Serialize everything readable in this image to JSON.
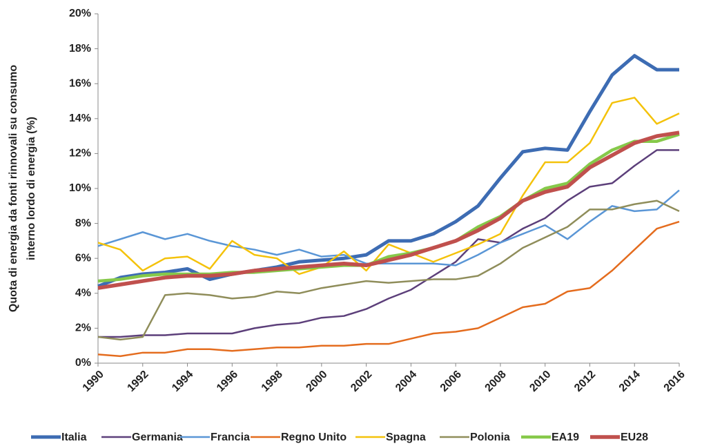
{
  "chart_data": {
    "type": "line",
    "ylabel": [
      "Quota di energia da fonti rinnovali su consumo",
      "interno lordo di energia (%)"
    ],
    "x": [
      1990,
      1991,
      1992,
      1993,
      1994,
      1995,
      1996,
      1997,
      1998,
      1999,
      2000,
      2001,
      2002,
      2003,
      2004,
      2005,
      2006,
      2007,
      2008,
      2009,
      2010,
      2011,
      2012,
      2013,
      2014,
      2015,
      2016
    ],
    "xlim": [
      1990,
      2016
    ],
    "xticks": [
      1990,
      1992,
      1994,
      1996,
      1998,
      2000,
      2002,
      2004,
      2006,
      2008,
      2010,
      2012,
      2014,
      2016
    ],
    "ylim": [
      0,
      20
    ],
    "yticks": [
      {
        "value": 0,
        "label": "0%"
      },
      {
        "value": 2,
        "label": "2%"
      },
      {
        "value": 4,
        "label": "4%"
      },
      {
        "value": 6,
        "label": "6%"
      },
      {
        "value": 8,
        "label": "8%"
      },
      {
        "value": 10,
        "label": "10%"
      },
      {
        "value": 12,
        "label": "12%"
      },
      {
        "value": 14,
        "label": "14%"
      },
      {
        "value": 16,
        "label": "16%"
      },
      {
        "value": 18,
        "label": "18%"
      },
      {
        "value": 20,
        "label": "20%"
      }
    ],
    "legend": "bottom",
    "series": [
      {
        "name": "Italia",
        "color": "#3d6cb3",
        "values": [
          4.4,
          4.9,
          5.1,
          5.2,
          5.4,
          4.8,
          5.1,
          5.3,
          5.5,
          5.8,
          5.9,
          6.0,
          6.2,
          7.0,
          7.0,
          7.4,
          8.1,
          9.0,
          10.6,
          12.1,
          12.3,
          12.2,
          14.4,
          16.5,
          17.6,
          16.8,
          16.8
        ]
      },
      {
        "name": "Germania",
        "color": "#5c3f7a",
        "values": [
          1.5,
          1.5,
          1.6,
          1.6,
          1.7,
          1.7,
          1.7,
          2.0,
          2.2,
          2.3,
          2.6,
          2.7,
          3.1,
          3.7,
          4.2,
          5.0,
          5.8,
          7.1,
          6.9,
          7.7,
          8.3,
          9.3,
          10.1,
          10.3,
          11.3,
          12.2,
          12.2
        ]
      },
      {
        "name": "Francia",
        "color": "#5a96d6",
        "values": [
          6.7,
          7.1,
          7.5,
          7.1,
          7.4,
          7.0,
          6.7,
          6.5,
          6.2,
          6.5,
          6.1,
          6.2,
          5.7,
          5.7,
          5.7,
          5.7,
          5.6,
          6.2,
          6.9,
          7.4,
          7.9,
          7.1,
          8.1,
          9.0,
          8.7,
          8.8,
          9.9
        ]
      },
      {
        "name": "Regno Unito",
        "color": "#e46c1e",
        "values": [
          0.5,
          0.4,
          0.6,
          0.6,
          0.8,
          0.8,
          0.7,
          0.8,
          0.9,
          0.9,
          1.0,
          1.0,
          1.1,
          1.1,
          1.4,
          1.7,
          1.8,
          2.0,
          2.6,
          3.2,
          3.4,
          4.1,
          4.3,
          5.3,
          6.5,
          7.7,
          8.1
        ]
      },
      {
        "name": "Spagna",
        "color": "#f4c20a",
        "values": [
          6.9,
          6.5,
          5.3,
          6.0,
          6.1,
          5.4,
          7.0,
          6.2,
          6.0,
          5.1,
          5.5,
          6.4,
          5.3,
          6.8,
          6.3,
          5.8,
          6.3,
          6.8,
          7.4,
          9.6,
          11.5,
          11.5,
          12.6,
          14.9,
          15.2,
          13.7,
          14.3
        ]
      },
      {
        "name": "Polonia",
        "color": "#8f8d5a",
        "values": [
          1.5,
          1.35,
          1.5,
          3.9,
          4.0,
          3.9,
          3.7,
          3.8,
          4.1,
          4.0,
          4.3,
          4.5,
          4.7,
          4.6,
          4.7,
          4.8,
          4.8,
          5.0,
          5.7,
          6.6,
          7.2,
          7.8,
          8.8,
          8.8,
          9.1,
          9.3,
          8.7
        ]
      },
      {
        "name": "EA19",
        "color": "#86c94a",
        "values": [
          4.7,
          4.8,
          5.0,
          5.1,
          5.1,
          5.1,
          5.2,
          5.2,
          5.3,
          5.4,
          5.5,
          5.6,
          5.6,
          6.1,
          6.3,
          6.6,
          7.0,
          7.8,
          8.4,
          9.3,
          10.0,
          10.3,
          11.4,
          12.2,
          12.7,
          12.7,
          13.1
        ]
      },
      {
        "name": "EU28",
        "color": "#c0504d",
        "values": [
          4.3,
          4.5,
          4.7,
          4.9,
          5.0,
          5.0,
          5.1,
          5.3,
          5.4,
          5.5,
          5.6,
          5.7,
          5.6,
          5.9,
          6.2,
          6.6,
          7.0,
          7.6,
          8.3,
          9.3,
          9.8,
          10.1,
          11.2,
          11.9,
          12.6,
          13.0,
          13.2
        ]
      }
    ]
  }
}
